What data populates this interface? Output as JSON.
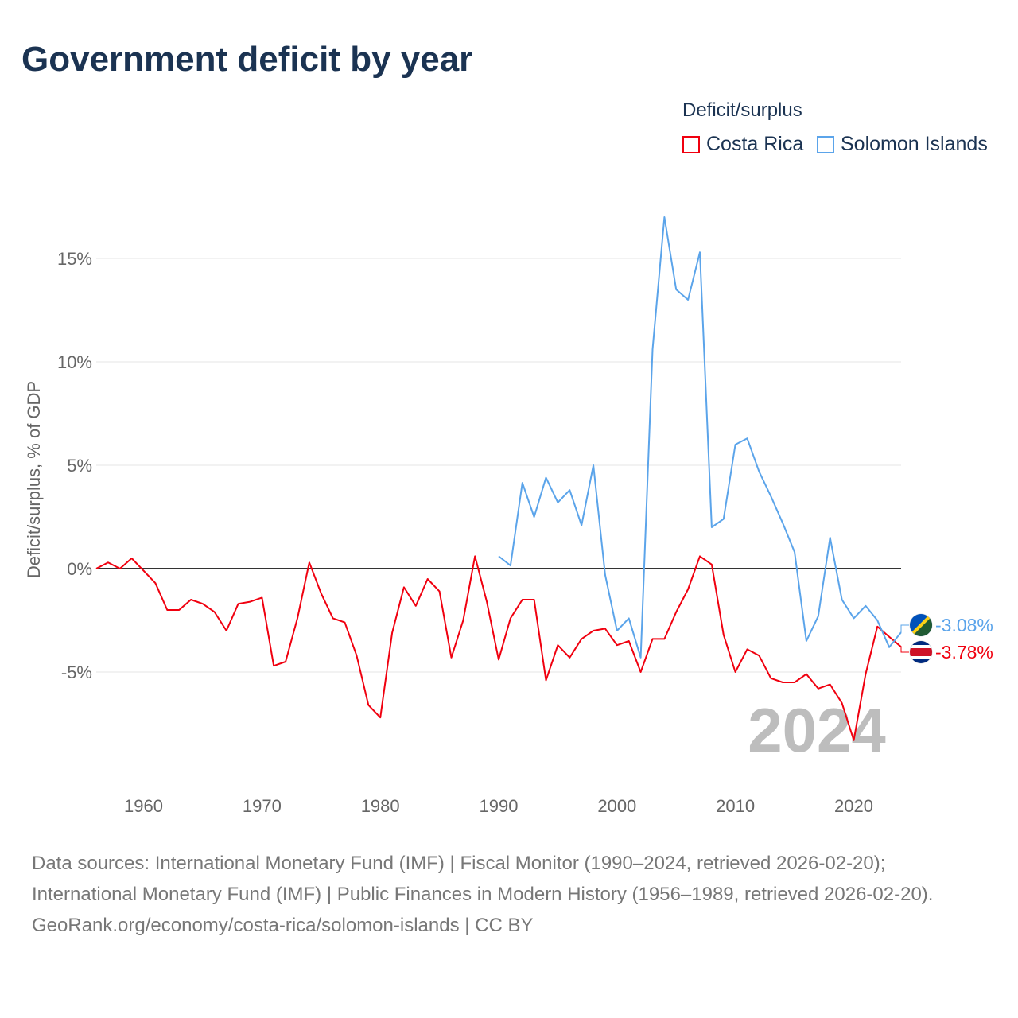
{
  "chart_data": {
    "type": "line",
    "title": "Government deficit by year",
    "ylabel": "Deficit/surplus, % of GDP",
    "xlabel": "",
    "xlim": [
      1956,
      2024
    ],
    "ylim": [
      -10,
      17.5
    ],
    "xticks": [
      1960,
      1970,
      1980,
      1990,
      2000,
      2010,
      2020
    ],
    "yticks": [
      {
        "v": 15,
        "label": "15%"
      },
      {
        "v": 10,
        "label": "10%"
      },
      {
        "v": 5,
        "label": "5%"
      },
      {
        "v": 0,
        "label": "0%"
      },
      {
        "v": -5,
        "label": "-5%"
      }
    ],
    "legend_title": "Deficit/surplus",
    "legend_position": "top-right",
    "year_watermark": "2024",
    "series": [
      {
        "name": "Costa Rica",
        "color": "#f0000f",
        "end_label": "-3.78%",
        "start_year": 1956,
        "values": [
          0,
          0.3,
          0,
          0.5,
          -0.1,
          -0.7,
          -2.0,
          -2.0,
          -1.5,
          -1.7,
          -2.1,
          -3.0,
          -1.7,
          -1.6,
          -1.4,
          -4.7,
          -4.5,
          -2.4,
          0.3,
          -1.2,
          -2.4,
          -2.6,
          -4.2,
          -6.6,
          -7.2,
          -3.1,
          -0.9,
          -1.8,
          -0.5,
          -1.1,
          -4.3,
          -2.5,
          0.6,
          -1.6,
          -4.4,
          -2.4,
          -1.5,
          -1.5,
          -5.4,
          -3.7,
          -4.3,
          -3.4,
          -3.0,
          -2.9,
          -3.7,
          -3.5,
          -5.0,
          -3.4,
          -3.4,
          -2.1,
          -1.0,
          0.6,
          0.2,
          -3.2,
          -5.0,
          -3.9,
          -4.2,
          -5.3,
          -5.5,
          -5.5,
          -5.1,
          -5.8,
          -5.6,
          -6.5,
          -8.3,
          -5.1,
          -2.8,
          -3.3,
          -3.78
        ]
      },
      {
        "name": "Solomon Islands",
        "color": "#5ba4ea",
        "end_label": "-3.08%",
        "start_year": 1990,
        "values": [
          0.6,
          0.15,
          4.15,
          2.5,
          4.4,
          3.2,
          3.8,
          2.1,
          5.0,
          -0.3,
          -3.0,
          -2.4,
          -4.3,
          10.6,
          17.0,
          13.5,
          13.0,
          15.3,
          2.0,
          2.4,
          6.0,
          6.3,
          4.7,
          3.5,
          2.2,
          0.8,
          -3.5,
          -2.3,
          1.5,
          -1.5,
          -2.4,
          -1.8,
          -2.5,
          -3.8,
          -3.08
        ]
      }
    ]
  },
  "source": {
    "line1": "Data sources: International Monetary Fund (IMF) | Fiscal Monitor (1990–2024, retrieved 2026-02-20); International Monetary Fund (IMF) | Public Finances in Modern History (1956–1989, retrieved 2026-02-20).",
    "line2": "GeoRank.org/economy/costa-rica/solomon-islands | CC BY"
  }
}
